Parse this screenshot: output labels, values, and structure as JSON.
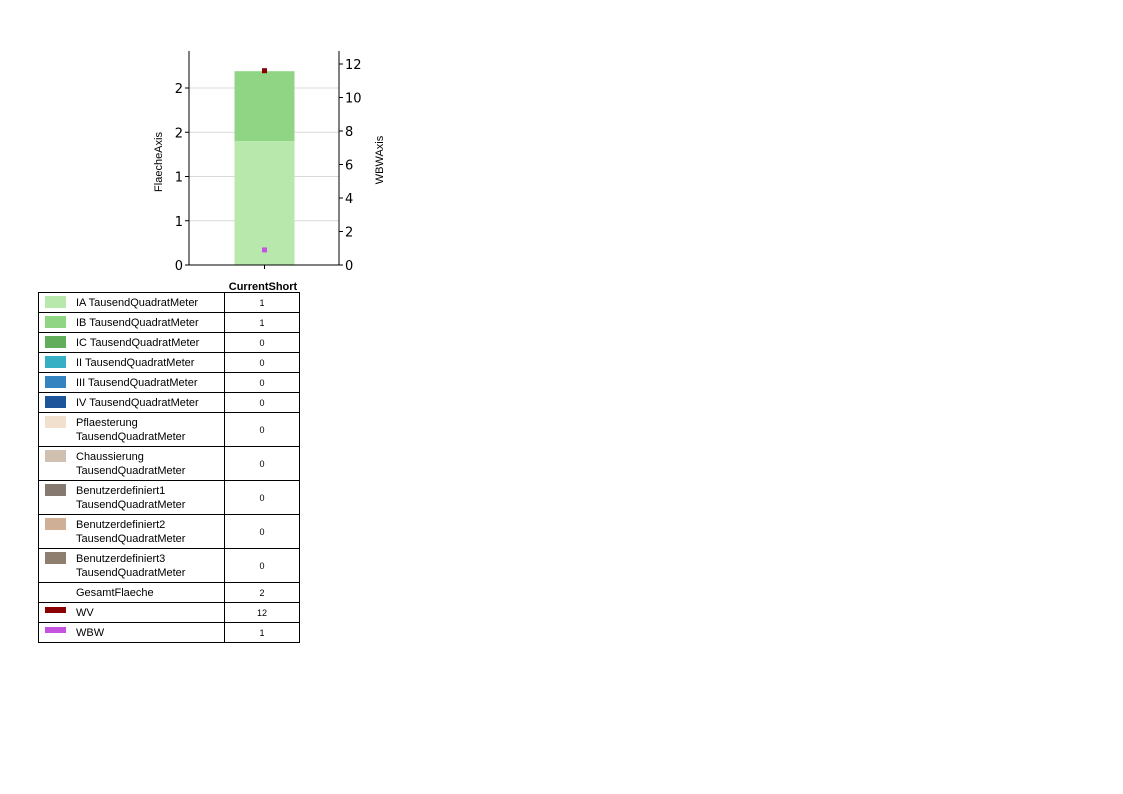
{
  "chart_data": {
    "type": "bar",
    "categories": [
      "CurrentShort"
    ],
    "left_axis": {
      "title": "FlaecheAxis",
      "ticks": [
        0,
        0.5,
        1,
        1.5,
        2
      ],
      "tick_labels": [
        "0",
        "1",
        "1",
        "2",
        "2"
      ],
      "ylim": [
        0,
        2.4
      ]
    },
    "right_axis": {
      "title": "WBWAxis",
      "ticks": [
        0,
        2,
        4,
        6,
        8,
        10,
        12
      ],
      "tick_labels": [
        "0",
        "2",
        "4",
        "6",
        "8",
        "10",
        "12"
      ],
      "ylim": [
        0,
        12.8
      ]
    },
    "grid": true,
    "series": [
      {
        "name": "IA TausendQuadratMeter",
        "type": "stacked-bar",
        "axis": "left",
        "values": [
          1.4
        ],
        "color": "#b9e8ad",
        "display": "1"
      },
      {
        "name": "IB TausendQuadratMeter",
        "type": "stacked-bar",
        "axis": "left",
        "values": [
          0.79
        ],
        "color": "#8fd584",
        "display": "1"
      },
      {
        "name": "IC TausendQuadratMeter",
        "type": "stacked-bar",
        "axis": "left",
        "values": [
          0
        ],
        "color": "#62ad5b",
        "display": "0"
      },
      {
        "name": "II TausendQuadratMeter",
        "type": "stacked-bar",
        "axis": "left",
        "values": [
          0
        ],
        "color": "#36aec4",
        "display": "0"
      },
      {
        "name": "III TausendQuadratMeter",
        "type": "stacked-bar",
        "axis": "left",
        "values": [
          0
        ],
        "color": "#3283c0",
        "display": "0"
      },
      {
        "name": "IV TausendQuadratMeter",
        "type": "stacked-bar",
        "axis": "left",
        "values": [
          0
        ],
        "color": "#1d549a",
        "display": "0"
      },
      {
        "name": "Pflaesterung TausendQuadratMeter",
        "type": "stacked-bar",
        "axis": "left",
        "values": [
          0
        ],
        "color": "#f2e0cf",
        "display": "0"
      },
      {
        "name": "Chaussierung TausendQuadratMeter",
        "type": "stacked-bar",
        "axis": "left",
        "values": [
          0
        ],
        "color": "#cfc0b0",
        "display": "0"
      },
      {
        "name": "Benutzerdefiniert1 TausendQuadratMeter",
        "type": "stacked-bar",
        "axis": "left",
        "values": [
          0
        ],
        "color": "#857970",
        "display": "0"
      },
      {
        "name": "Benutzerdefiniert2 TausendQuadratMeter",
        "type": "stacked-bar",
        "axis": "left",
        "values": [
          0
        ],
        "color": "#cfb096",
        "display": "0"
      },
      {
        "name": "Benutzerdefiniert3 TausendQuadratMeter",
        "type": "stacked-bar",
        "axis": "left",
        "values": [
          0
        ],
        "color": "#8e7e70",
        "display": "0"
      },
      {
        "name": "GesamtFlaeche",
        "type": "none",
        "axis": "left",
        "values": [
          2.19
        ],
        "color": "",
        "display": "2"
      },
      {
        "name": "WV",
        "type": "point",
        "axis": "right",
        "values": [
          11.6
        ],
        "color": "#8b0000",
        "display": "12"
      },
      {
        "name": "WBW",
        "type": "point",
        "axis": "right",
        "values": [
          0.9
        ],
        "color": "#c652e0",
        "display": "1"
      }
    ]
  }
}
